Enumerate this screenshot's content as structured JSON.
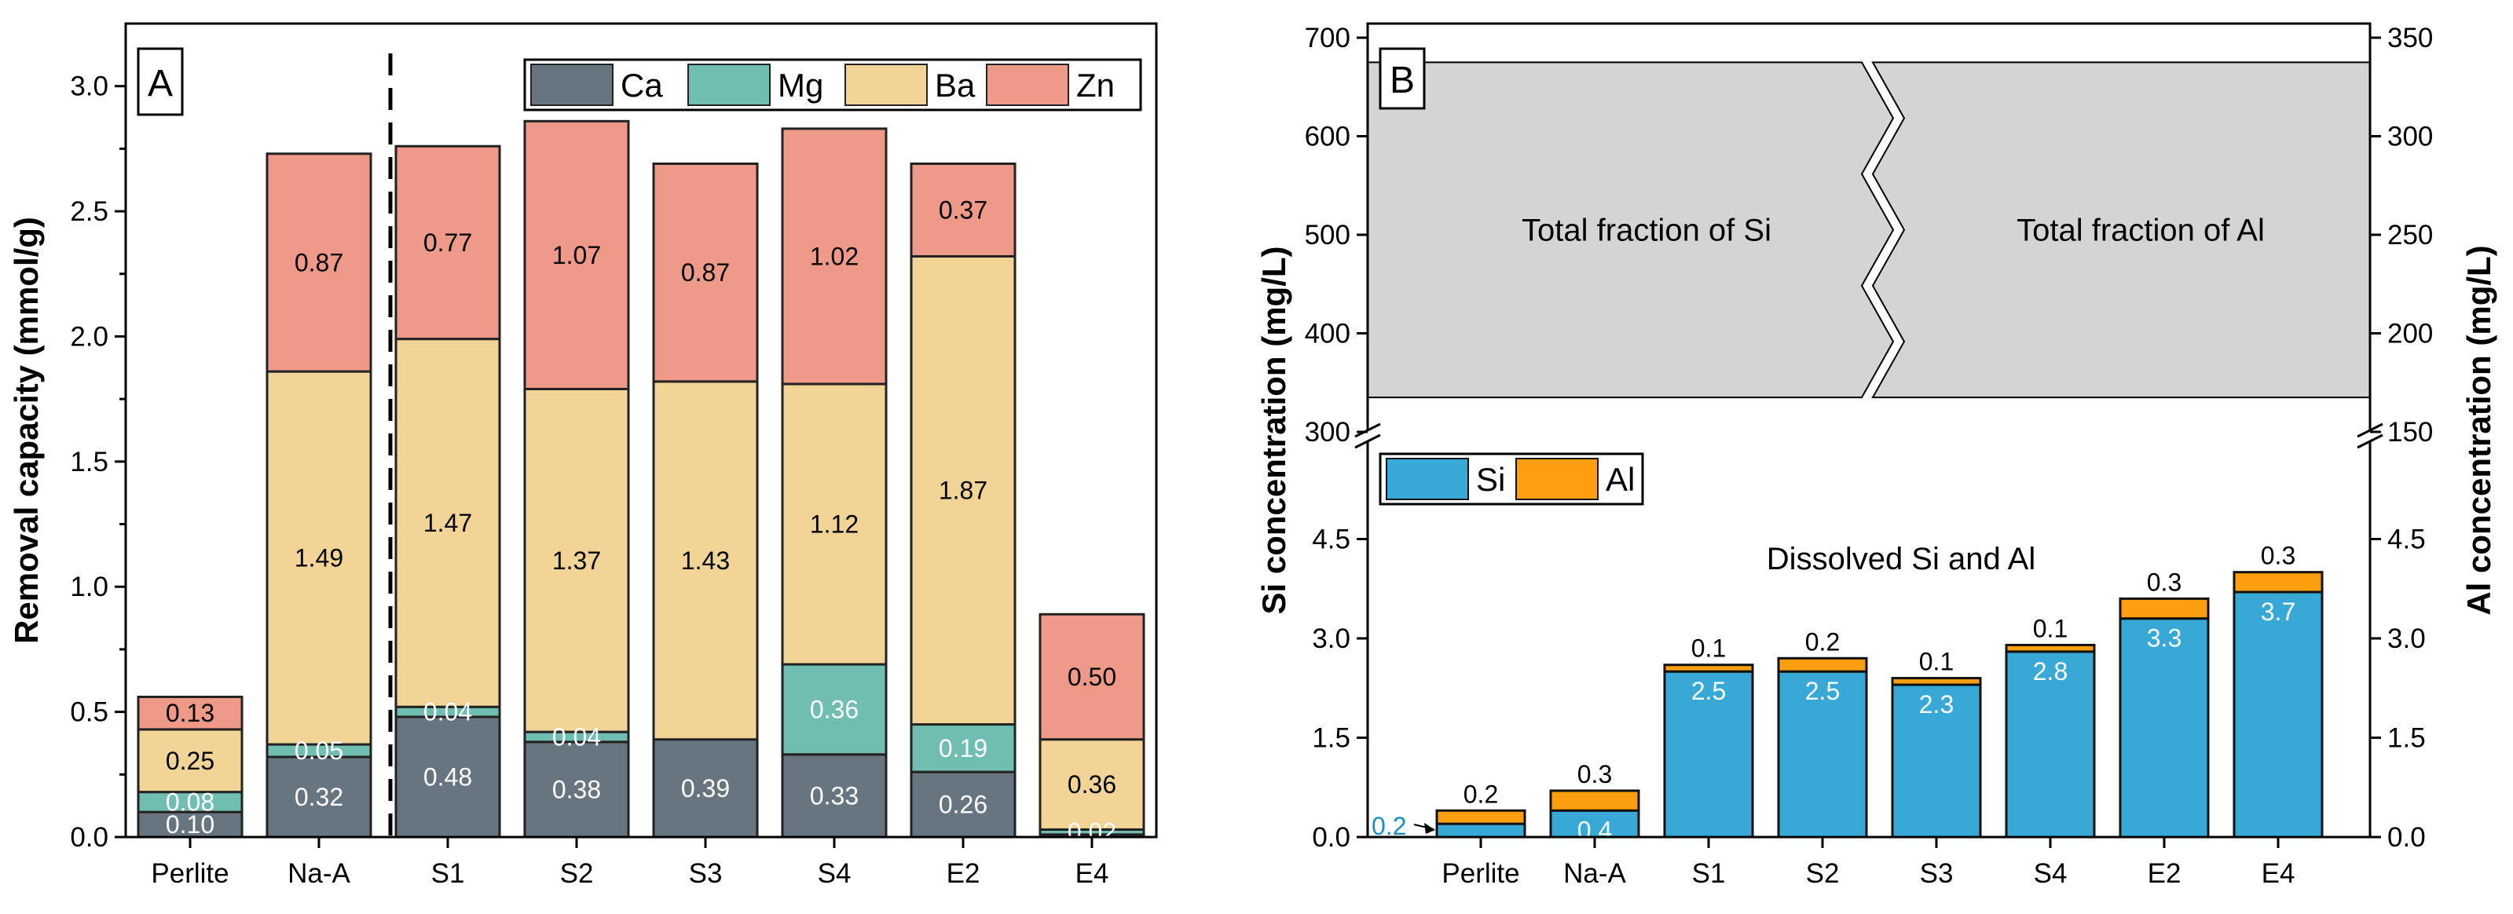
{
  "chart_data": [
    {
      "type": "bar",
      "stacked": true,
      "panel_label": "A",
      "ylabel": "Removal capacity (mmol/g)",
      "ylim": [
        0,
        3.25
      ],
      "yticks": [
        "0.0",
        "0.5",
        "1.0",
        "1.5",
        "2.0",
        "2.5",
        "3.0"
      ],
      "categories": [
        "Perlite",
        "Na-A",
        "S1",
        "S2",
        "S3",
        "S4",
        "E2",
        "E4"
      ],
      "divider_after": "Na-A",
      "legend_position": "top-right",
      "series": [
        {
          "name": "Ca",
          "color": "#66757f",
          "values": [
            0.1,
            0.32,
            0.48,
            0.38,
            0.39,
            0.33,
            0.26,
            0.01
          ],
          "labels": [
            "0.10",
            "0.32",
            "0.48",
            "0.38",
            "0.39",
            "0.33",
            "0.26",
            ""
          ],
          "label_colors": [
            "#ffffff",
            "#ffffff",
            "#ffffff",
            "#ffffff",
            "#ffffff",
            "#ffffff",
            "#ffffff",
            "#ffffff"
          ]
        },
        {
          "name": "Mg",
          "color": "#6fbeb1",
          "values": [
            0.08,
            0.05,
            0.04,
            0.04,
            0.0,
            0.36,
            0.19,
            0.02
          ],
          "labels": [
            "0.08",
            "0.05",
            "0.04",
            "0.04",
            "",
            "0.36",
            "0.19",
            "0.02"
          ],
          "label_colors": [
            "#ffffff",
            "#ffffff",
            "#ffffff",
            "#ffffff",
            "#ffffff",
            "#ffffff",
            "#ffffff",
            "#ffffff"
          ]
        },
        {
          "name": "Ba",
          "color": "#f2d497",
          "values": [
            0.25,
            1.49,
            1.47,
            1.37,
            1.43,
            1.12,
            1.87,
            0.36
          ],
          "labels": [
            "0.25",
            "1.49",
            "1.47",
            "1.37",
            "1.43",
            "1.12",
            "1.87",
            "0.36"
          ],
          "label_colors": [
            "#000000",
            "#000000",
            "#000000",
            "#000000",
            "#000000",
            "#000000",
            "#000000",
            "#000000"
          ]
        },
        {
          "name": "Zn",
          "color": "#ef9a88",
          "values": [
            0.13,
            0.87,
            0.77,
            1.07,
            0.87,
            1.02,
            0.37,
            0.5
          ],
          "labels": [
            "0.13",
            "0.87",
            "0.77",
            "1.07",
            "0.87",
            "1.02",
            "0.37",
            "0.50"
          ],
          "label_colors": [
            "#000000",
            "#000000",
            "#000000",
            "#000000",
            "#000000",
            "#000000",
            "#000000",
            "#000000"
          ]
        }
      ]
    },
    {
      "type": "bar",
      "stacked": true,
      "panel_label": "B",
      "ylabel_left": "Si concentration (mg/L)",
      "ylabel_right": "Al concentration (mg/L)",
      "broken_axis": true,
      "lower_ylim": [
        0,
        6
      ],
      "upper_ylim": [
        300,
        700
      ],
      "lower_right_ylim": [
        0,
        6
      ],
      "upper_right_ylim": [
        150,
        350
      ],
      "left_lower_ticks": [
        "0.0",
        "1.5",
        "3.0",
        "4.5"
      ],
      "left_upper_ticks": [
        "300",
        "400",
        "500",
        "600",
        "700"
      ],
      "right_lower_ticks": [
        "0.0",
        "1.5",
        "3.0",
        "4.5"
      ],
      "right_upper_ticks": [
        "150",
        "200",
        "250",
        "300",
        "350"
      ],
      "categories": [
        "Perlite",
        "Na-A",
        "S1",
        "S2",
        "S3",
        "S4",
        "E2",
        "E4"
      ],
      "series": [
        {
          "name": "Si",
          "color": "#38a9d6",
          "values": [
            0.2,
            0.4,
            2.5,
            2.5,
            2.3,
            2.8,
            3.3,
            3.7
          ],
          "labels": [
            "0.2",
            "0.4",
            "2.5",
            "2.5",
            "2.3",
            "2.8",
            "3.3",
            "3.7"
          ]
        },
        {
          "name": "Al",
          "color": "#ff9f0f",
          "values": [
            0.2,
            0.3,
            0.1,
            0.2,
            0.1,
            0.1,
            0.3,
            0.3
          ],
          "labels": [
            "0.2",
            "0.3",
            "0.1",
            "0.2",
            "0.1",
            "0.1",
            "0.3",
            "0.3"
          ]
        }
      ],
      "total_band": {
        "from": 335,
        "to": 675,
        "color": "#d4d4d4",
        "left_text": "Total fraction of Si",
        "right_text": "Total fraction of Al"
      },
      "annotation": "Dissolved Si and Al",
      "legend_position": "top-left"
    }
  ]
}
